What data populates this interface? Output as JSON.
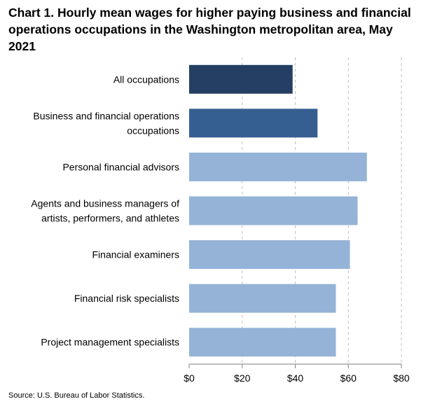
{
  "chart_data": {
    "type": "bar",
    "orientation": "horizontal",
    "title": "Chart 1. Hourly mean wages for higher paying business and financial operations occupations in the Washington metropolitan area, May 2021",
    "categories": [
      "All occupations",
      "Business and financial operations occupations",
      "Personal financial advisors",
      "Agents and business managers of artists, performers, and athletes",
      "Financial examiners",
      "Financial risk specialists",
      "Project management specialists"
    ],
    "category_lines": [
      [
        "All occupations"
      ],
      [
        "Business and financial operations",
        "occupations"
      ],
      [
        "Personal financial advisors"
      ],
      [
        "Agents and business managers of",
        "artists, performers, and athletes"
      ],
      [
        "Financial examiners"
      ],
      [
        "Financial risk specialists"
      ],
      [
        "Project management specialists"
      ]
    ],
    "values": [
      39.0,
      48.4,
      67.0,
      63.5,
      60.6,
      55.3,
      55.3
    ],
    "bar_colors": [
      "#243f63",
      "#365f91",
      "#95b3d7",
      "#95b3d7",
      "#95b3d7",
      "#95b3d7",
      "#95b3d7"
    ],
    "xlim": [
      0,
      80
    ],
    "xticks": [
      0,
      20,
      40,
      60,
      80
    ],
    "xtick_labels": [
      "$0",
      "$20",
      "$40",
      "$60",
      "$80"
    ],
    "xlabel": "",
    "ylabel": "",
    "grid": "vertical dashed",
    "legend": "none"
  },
  "source": "Source: U.S. Bureau of Labor Statistics."
}
